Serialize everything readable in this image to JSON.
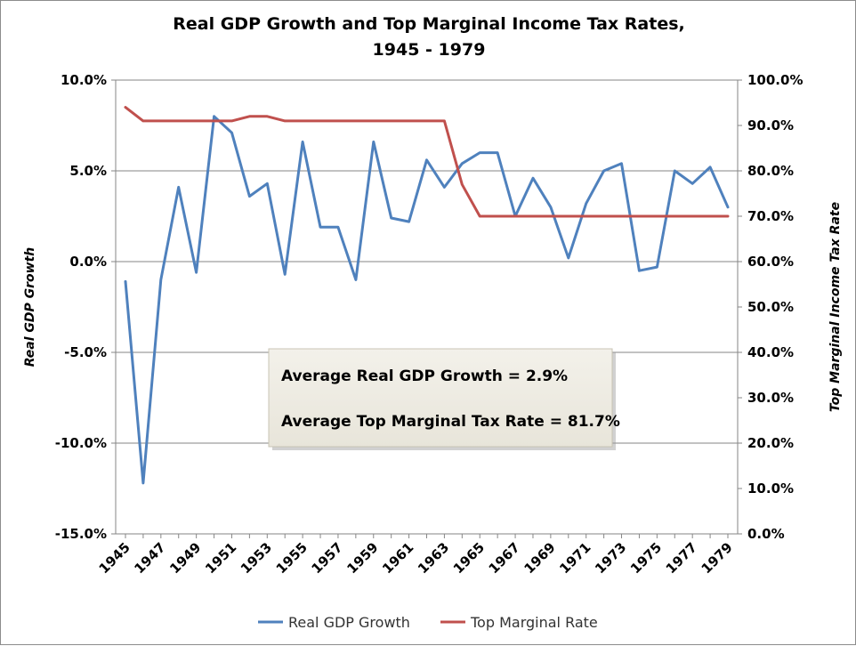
{
  "chart_data": {
    "type": "line",
    "title_line1": "Real GDP Growth and Top Marginal Income Tax Rates,",
    "title_line2": "1945 - 1979",
    "ylabel_left": "Real GDP Growth",
    "ylabel_right": "Top Marginal Income Tax Rate",
    "x": [
      1945,
      1946,
      1947,
      1948,
      1949,
      1950,
      1951,
      1952,
      1953,
      1954,
      1955,
      1956,
      1957,
      1958,
      1959,
      1960,
      1961,
      1962,
      1963,
      1964,
      1965,
      1966,
      1967,
      1968,
      1969,
      1970,
      1971,
      1972,
      1973,
      1974,
      1975,
      1976,
      1977,
      1978,
      1979
    ],
    "x_tick_labels": [
      "1945",
      "1947",
      "1949",
      "1951",
      "1953",
      "1955",
      "1957",
      "1959",
      "1961",
      "1963",
      "1965",
      "1967",
      "1969",
      "1971",
      "1973",
      "1975",
      "1977",
      "1979"
    ],
    "y_left_ticks": [
      "10.0%",
      "5.0%",
      "0.0%",
      "-5.0%",
      "-10.0%",
      "-15.0%"
    ],
    "y_right_ticks": [
      "100.0%",
      "90.0%",
      "80.0%",
      "70.0%",
      "60.0%",
      "50.0%",
      "40.0%",
      "30.0%",
      "20.0%",
      "10.0%",
      "0.0%"
    ],
    "ylim_left": [
      -15,
      10
    ],
    "ylim_right": [
      0,
      100
    ],
    "grid": true,
    "legend_position": "bottom",
    "series": [
      {
        "name": "Real GDP Growth",
        "axis": "left",
        "color": "#4f81bd",
        "values": [
          -1.1,
          -12.2,
          -1.0,
          4.1,
          -0.6,
          8.0,
          7.1,
          3.6,
          4.3,
          -0.7,
          6.6,
          1.9,
          1.9,
          -1.0,
          6.6,
          2.4,
          2.2,
          5.6,
          4.1,
          5.4,
          6.0,
          6.0,
          2.5,
          4.6,
          3.0,
          0.2,
          3.2,
          5.0,
          5.4,
          -0.5,
          -0.3,
          5.0,
          4.3,
          5.2,
          3.0
        ]
      },
      {
        "name": "Top Marginal Rate",
        "axis": "right",
        "color": "#c0504d",
        "values": [
          94,
          91,
          91,
          91,
          91,
          91,
          91,
          92,
          92,
          91,
          91,
          91,
          91,
          91,
          91,
          91,
          91,
          91,
          91,
          77,
          70,
          70,
          70,
          70,
          70,
          70,
          70,
          70,
          70,
          70,
          70,
          70,
          70,
          70,
          70
        ]
      }
    ],
    "annotation": {
      "line1": "Average Real GDP Growth = 2.9%",
      "line2": "Average Top Marginal Tax Rate = 81.7%"
    }
  }
}
